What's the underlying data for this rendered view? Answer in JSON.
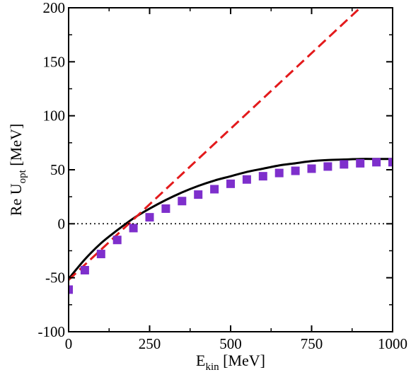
{
  "chart_data": {
    "type": "line",
    "xlabel": {
      "main": "E",
      "sub": "kin",
      "rest": " [MeV]"
    },
    "ylabel": {
      "main": "Re U",
      "sub": "opt",
      "rest": " [MeV]"
    },
    "xlim": [
      0,
      1000
    ],
    "ylim": [
      -100,
      200
    ],
    "xticks": [
      0,
      250,
      500,
      750,
      1000
    ],
    "yticks": [
      -100,
      -50,
      0,
      50,
      100,
      150,
      200
    ],
    "xtick_labels": [
      "0",
      "250",
      "500",
      "750",
      "1000"
    ],
    "ytick_labels": [
      "-100",
      "-50",
      "0",
      "50",
      "100",
      "150",
      "200"
    ],
    "grid": false,
    "reference_line": {
      "y": 0,
      "style": "dotted",
      "color": "#000000"
    },
    "series": [
      {
        "style": "solid-line",
        "color": "#000000",
        "x": [
          0,
          50,
          100,
          150,
          200,
          250,
          300,
          350,
          400,
          450,
          500,
          550,
          600,
          650,
          700,
          750,
          800,
          850,
          900,
          950,
          1000
        ],
        "values": [
          -51,
          -33,
          -18,
          -6,
          5,
          14,
          22,
          29,
          35,
          40,
          44,
          48,
          51,
          54,
          56,
          58,
          59,
          59.5,
          60,
          60,
          60
        ]
      },
      {
        "style": "dashed-line",
        "color": "#e31a1c",
        "x": [
          0,
          900
        ],
        "values": [
          -52,
          200
        ]
      },
      {
        "style": "square-markers",
        "color": "#7e2fcc",
        "x": [
          0,
          50,
          100,
          150,
          200,
          250,
          300,
          350,
          400,
          450,
          500,
          550,
          600,
          650,
          700,
          750,
          800,
          850,
          900,
          950,
          1000
        ],
        "values": [
          -61,
          -43,
          -28,
          -15,
          -4,
          6,
          14,
          21,
          27,
          32,
          37,
          41,
          44,
          47,
          49,
          51,
          53,
          55,
          56,
          57,
          57
        ]
      }
    ]
  }
}
